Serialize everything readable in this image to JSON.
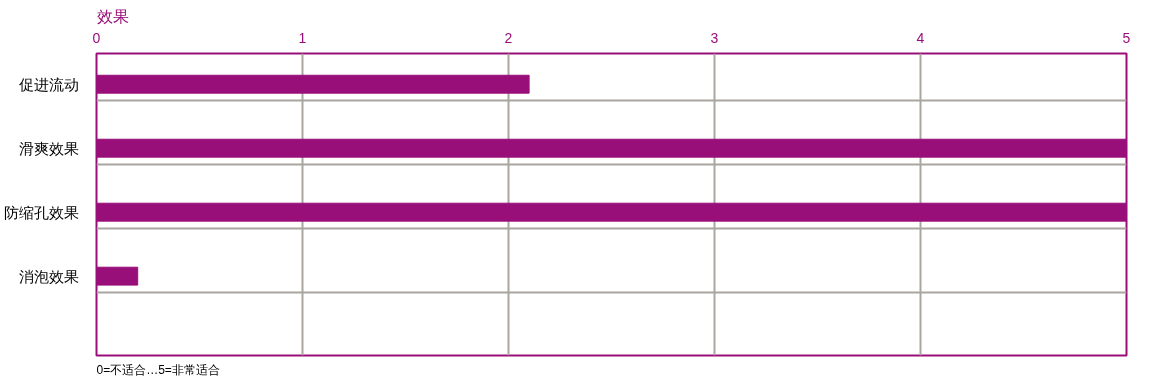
{
  "chart_data": {
    "type": "bar",
    "orientation": "horizontal",
    "title": "效果",
    "categories": [
      "促进流动",
      "滑爽效果",
      "防缩孔效果",
      "消泡效果"
    ],
    "values": [
      2.1,
      5,
      5,
      0.2
    ],
    "color": "#990f7a",
    "xlim": [
      0,
      5
    ],
    "xticks": [
      0,
      1,
      2,
      3,
      4,
      5
    ],
    "grid": "x",
    "annotations": [
      "0=不适合…5=非常适合"
    ]
  }
}
